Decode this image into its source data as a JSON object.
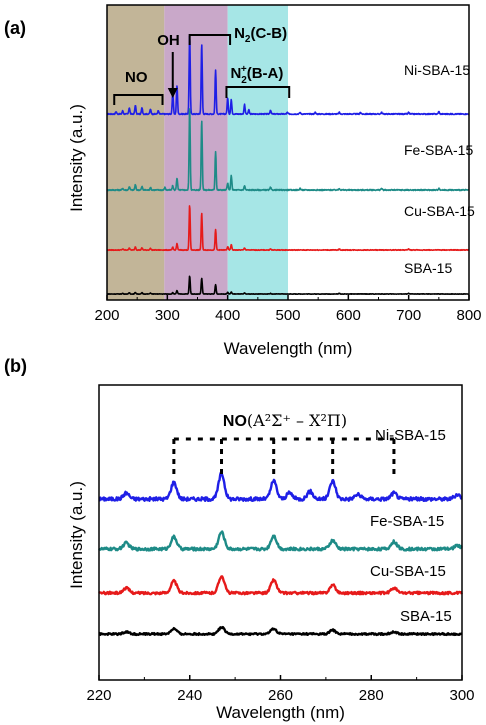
{
  "chart_data": [
    {
      "panel_label": "(a)",
      "type": "line",
      "xlabel": "Wavelength (nm)",
      "ylabel": "Intensity (a.u.)",
      "xlim": [
        200,
        800
      ],
      "xticks": [
        "200",
        "300",
        "400",
        "500",
        "600",
        "700",
        "800"
      ],
      "shaded_regions": [
        {
          "from": 200,
          "to": 295,
          "color": "#c2b598"
        },
        {
          "from": 295,
          "to": 400,
          "color": "#c9a8c9"
        },
        {
          "from": 400,
          "to": 500,
          "color": "#a6e6e6"
        }
      ],
      "annotations": [
        {
          "text": "NO",
          "type": "bracket",
          "from": 212,
          "to": 292
        },
        {
          "text": "OH",
          "type": "arrow",
          "x": 309
        },
        {
          "text": "N2(C-B)",
          "type": "bracket",
          "from": 337,
          "to": 404
        },
        {
          "text": "N2+(B-A)",
          "type": "bracket",
          "from": 398,
          "to": 502
        }
      ],
      "series": [
        {
          "name": "Ni-SBA-15",
          "color": "#1f1fe6",
          "peaks": [
            [
              215,
              0.03
            ],
            [
              226,
              0.04
            ],
            [
              237,
              0.08
            ],
            [
              247,
              0.11
            ],
            [
              258,
              0.08
            ],
            [
              272,
              0.06
            ],
            [
              285,
              0.04
            ],
            [
              309,
              0.28
            ],
            [
              316,
              0.36
            ],
            [
              337,
              1.0
            ],
            [
              357,
              0.88
            ],
            [
              380,
              0.55
            ],
            [
              400,
              0.2
            ],
            [
              406,
              0.18
            ],
            [
              428,
              0.12
            ],
            [
              435,
              0.05
            ],
            [
              471,
              0.05
            ],
            [
              499,
              0.02
            ],
            [
              520,
              0.02
            ],
            [
              545,
              0.02
            ],
            [
              585,
              0.02
            ],
            [
              620,
              0.02
            ],
            [
              655,
              0.02
            ],
            [
              700,
              0.02
            ],
            [
              750,
              0.03
            ]
          ]
        },
        {
          "name": "Fe-SBA-15",
          "color": "#1e8b87",
          "peaks": [
            [
              226,
              0.02
            ],
            [
              237,
              0.04
            ],
            [
              247,
              0.06
            ],
            [
              258,
              0.04
            ],
            [
              272,
              0.03
            ],
            [
              296,
              0.03
            ],
            [
              309,
              0.05
            ],
            [
              316,
              0.14
            ],
            [
              337,
              0.96
            ],
            [
              357,
              0.82
            ],
            [
              380,
              0.45
            ],
            [
              400,
              0.08
            ],
            [
              406,
              0.17
            ],
            [
              428,
              0.05
            ],
            [
              471,
              0.03
            ],
            [
              520,
              0.02
            ],
            [
              585,
              0.02
            ],
            [
              655,
              0.02
            ],
            [
              750,
              0.02
            ]
          ]
        },
        {
          "name": "Cu-SBA-15",
          "color": "#e61a1a",
          "peaks": [
            [
              226,
              0.02
            ],
            [
              237,
              0.04
            ],
            [
              247,
              0.06
            ],
            [
              258,
              0.04
            ],
            [
              272,
              0.03
            ],
            [
              309,
              0.05
            ],
            [
              316,
              0.12
            ],
            [
              337,
              0.85
            ],
            [
              357,
              0.7
            ],
            [
              380,
              0.38
            ],
            [
              400,
              0.06
            ],
            [
              406,
              0.1
            ],
            [
              428,
              0.04
            ],
            [
              471,
              0.02
            ],
            [
              585,
              0.02
            ],
            [
              700,
              0.02
            ]
          ]
        },
        {
          "name": "SBA-15",
          "color": "#000000",
          "peaks": [
            [
              226,
              0.02
            ],
            [
              237,
              0.04
            ],
            [
              247,
              0.05
            ],
            [
              258,
              0.04
            ],
            [
              272,
              0.03
            ],
            [
              309,
              0.04
            ],
            [
              316,
              0.1
            ],
            [
              337,
              0.55
            ],
            [
              357,
              0.48
            ],
            [
              380,
              0.28
            ],
            [
              400,
              0.05
            ],
            [
              406,
              0.06
            ],
            [
              428,
              0.03
            ],
            [
              471,
              0.02
            ],
            [
              585,
              0.02
            ],
            [
              700,
              0.02
            ]
          ]
        }
      ]
    },
    {
      "panel_label": "(b)",
      "type": "line",
      "xlabel": "Wavelength (nm)",
      "ylabel": "Intensity (a.u.)",
      "xlim": [
        220,
        300
      ],
      "xticks": [
        "220",
        "240",
        "260",
        "280",
        "300"
      ],
      "annotation": {
        "text_bold": "NO",
        "text_rest": "(A²Σ⁺ – X²Π)",
        "marker_positions": [
          236.5,
          247,
          258.5,
          271.5,
          285
        ]
      },
      "series": [
        {
          "name": "Ni-SBA-15",
          "color": "#1f1fe6",
          "peaks": [
            [
              226,
              0.2
            ],
            [
              236.5,
              0.55
            ],
            [
              247,
              0.85
            ],
            [
              258.5,
              0.6
            ],
            [
              262,
              0.2
            ],
            [
              266.5,
              0.25
            ],
            [
              271.5,
              0.6
            ],
            [
              277,
              0.15
            ],
            [
              285,
              0.2
            ],
            [
              299,
              0.15
            ]
          ]
        },
        {
          "name": "Fe-SBA-15",
          "color": "#1e8b87",
          "peaks": [
            [
              226,
              0.25
            ],
            [
              236.5,
              0.5
            ],
            [
              247,
              0.7
            ],
            [
              258.5,
              0.55
            ],
            [
              271.5,
              0.35
            ],
            [
              285,
              0.3
            ],
            [
              299,
              0.15
            ]
          ]
        },
        {
          "name": "Cu-SBA-15",
          "color": "#e61a1a",
          "peaks": [
            [
              226,
              0.25
            ],
            [
              236.5,
              0.6
            ],
            [
              247,
              0.85
            ],
            [
              258.5,
              0.65
            ],
            [
              271.5,
              0.4
            ],
            [
              285,
              0.25
            ]
          ]
        },
        {
          "name": "SBA-15",
          "color": "#000000",
          "peaks": [
            [
              226,
              0.15
            ],
            [
              236.5,
              0.35
            ],
            [
              247,
              0.45
            ],
            [
              258.5,
              0.35
            ],
            [
              271.5,
              0.25
            ],
            [
              285,
              0.15
            ]
          ]
        }
      ]
    }
  ]
}
